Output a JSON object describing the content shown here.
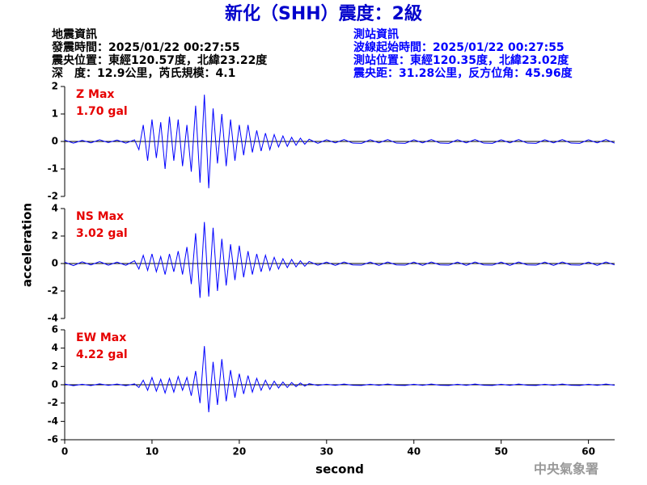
{
  "header": {
    "title": "新化（SHH）震度：2級",
    "left": [
      "地震資訊",
      "發震時間：2025/01/22 00:27:55",
      "震央位置：東經120.57度，北緯23.22度",
      "深　度：12.9公里，芮氏規模：4.1"
    ],
    "right": [
      "測站資訊",
      "波線起始時間：2025/01/22 00:27:55",
      "測站位置：東經120.35度，北緯23.02度",
      "震央距：31.28公里，反方位角：45.96度"
    ]
  },
  "ylabel": "acceleration",
  "footer": "中央氣象署",
  "x": [
    0,
    1,
    2,
    3,
    4,
    5,
    6,
    7,
    8,
    8.5,
    9,
    9.5,
    10,
    10.5,
    11,
    11.5,
    12,
    12.5,
    13,
    13.5,
    14,
    14.5,
    15,
    15.5,
    16,
    16.5,
    17,
    17.5,
    18,
    18.5,
    19,
    19.5,
    20,
    20.5,
    21,
    21.5,
    22,
    22.5,
    23,
    23.5,
    24,
    24.5,
    25,
    25.5,
    26,
    26.5,
    27,
    27.5,
    28,
    29,
    30,
    31,
    32,
    33,
    34,
    35,
    36,
    37,
    38,
    39,
    40,
    41,
    42,
    43,
    44,
    45,
    46,
    47,
    48,
    49,
    50,
    51,
    52,
    53,
    54,
    55,
    56,
    57,
    58,
    59,
    60,
    61,
    62,
    63
  ],
  "chart_data": [
    {
      "type": "line",
      "annotations": [
        "Z Max",
        "1.70 gal"
      ],
      "color": "#0000ff",
      "xlim": [
        0,
        63
      ],
      "ylim": [
        -2,
        2
      ],
      "yticks": [
        -2,
        -1,
        0,
        1,
        2
      ],
      "values": [
        0.05,
        -0.06,
        0.04,
        -0.05,
        0.06,
        -0.04,
        0.05,
        -0.06,
        0.06,
        -0.3,
        0.6,
        -0.7,
        0.8,
        -0.6,
        0.7,
        -1.0,
        0.9,
        -0.7,
        0.8,
        -0.9,
        0.6,
        -1.1,
        1.3,
        -1.5,
        1.7,
        -1.7,
        1.2,
        -0.8,
        1.0,
        -0.9,
        0.8,
        -0.7,
        0.6,
        -0.5,
        0.6,
        -0.4,
        0.4,
        -0.35,
        0.3,
        -0.3,
        0.25,
        -0.2,
        0.2,
        -0.18,
        0.15,
        -0.14,
        0.12,
        -0.1,
        0.08,
        -0.07,
        0.06,
        -0.05,
        0.07,
        -0.06,
        -0.07,
        0.06,
        -0.05,
        0.07,
        -0.06,
        -0.07,
        0.06,
        -0.05,
        0.07,
        -0.06,
        -0.07,
        0.06,
        -0.05,
        0.07,
        -0.06,
        -0.07,
        0.06,
        -0.05,
        0.07,
        -0.06,
        -0.07,
        0.06,
        -0.05,
        0.07,
        -0.06,
        -0.07,
        0.06,
        -0.05,
        0.07,
        -0.06
      ]
    },
    {
      "type": "line",
      "annotations": [
        "NS Max",
        "3.02 gal"
      ],
      "color": "#0000ff",
      "xlim": [
        0,
        63
      ],
      "ylim": [
        -4,
        4
      ],
      "yticks": [
        -4,
        -2,
        0,
        2,
        4
      ],
      "values": [
        0.1,
        -0.15,
        0.12,
        -0.1,
        0.14,
        -0.12,
        0.1,
        -0.13,
        0.2,
        -0.4,
        0.6,
        -0.5,
        0.7,
        -0.6,
        0.5,
        -0.8,
        0.7,
        -0.6,
        0.9,
        -0.8,
        1.2,
        -1.5,
        2.2,
        -2.5,
        3.02,
        -2.4,
        2.6,
        -2.0,
        1.8,
        -1.6,
        1.4,
        -1.2,
        1.3,
        -1.0,
        0.9,
        -0.8,
        0.7,
        -0.6,
        0.6,
        -0.5,
        0.45,
        -0.4,
        0.35,
        -0.3,
        0.3,
        -0.25,
        0.2,
        -0.2,
        0.15,
        -0.12,
        0.1,
        -0.14,
        0.11,
        -0.1,
        -0.12,
        0.1,
        -0.14,
        0.11,
        -0.1,
        -0.12,
        0.1,
        -0.14,
        0.11,
        -0.1,
        -0.12,
        0.1,
        -0.14,
        0.11,
        -0.1,
        -0.12,
        0.1,
        -0.14,
        0.11,
        -0.1,
        -0.12,
        0.1,
        -0.14,
        0.11,
        -0.1,
        -0.12,
        0.1,
        -0.14,
        0.11,
        -0.1
      ]
    },
    {
      "type": "line",
      "annotations": [
        "EW Max",
        "4.22 gal"
      ],
      "color": "#0000ff",
      "xlim": [
        0,
        63
      ],
      "ylim": [
        -6,
        6
      ],
      "yticks": [
        -6,
        -4,
        -2,
        0,
        2,
        4,
        6
      ],
      "xticks": [
        0,
        10,
        20,
        30,
        40,
        50,
        60
      ],
      "xlabel": "second",
      "values": [
        0.08,
        -0.1,
        0.06,
        -0.09,
        0.1,
        -0.07,
        0.08,
        -0.1,
        0.1,
        -0.3,
        0.5,
        -0.6,
        0.8,
        -0.7,
        0.6,
        -0.9,
        0.7,
        -0.8,
        0.9,
        -0.6,
        0.8,
        -1.2,
        1.5,
        -2.0,
        4.22,
        -3.0,
        2.5,
        -2.2,
        2.8,
        -1.8,
        1.6,
        -1.4,
        1.2,
        -1.0,
        1.0,
        -0.8,
        0.7,
        -0.6,
        0.5,
        -0.5,
        0.4,
        -0.35,
        0.3,
        -0.3,
        0.25,
        -0.2,
        0.2,
        -0.15,
        0.12,
        -0.08,
        0.06,
        -0.07,
        0.08,
        -0.06,
        -0.08,
        0.06,
        -0.07,
        0.08,
        -0.06,
        -0.08,
        0.06,
        -0.07,
        0.08,
        -0.06,
        -0.08,
        0.06,
        -0.07,
        0.08,
        -0.06,
        -0.08,
        0.06,
        -0.07,
        0.08,
        -0.06,
        -0.08,
        0.06,
        -0.07,
        0.08,
        -0.06,
        -0.08,
        0.06,
        -0.07,
        0.08,
        -0.06
      ]
    }
  ]
}
